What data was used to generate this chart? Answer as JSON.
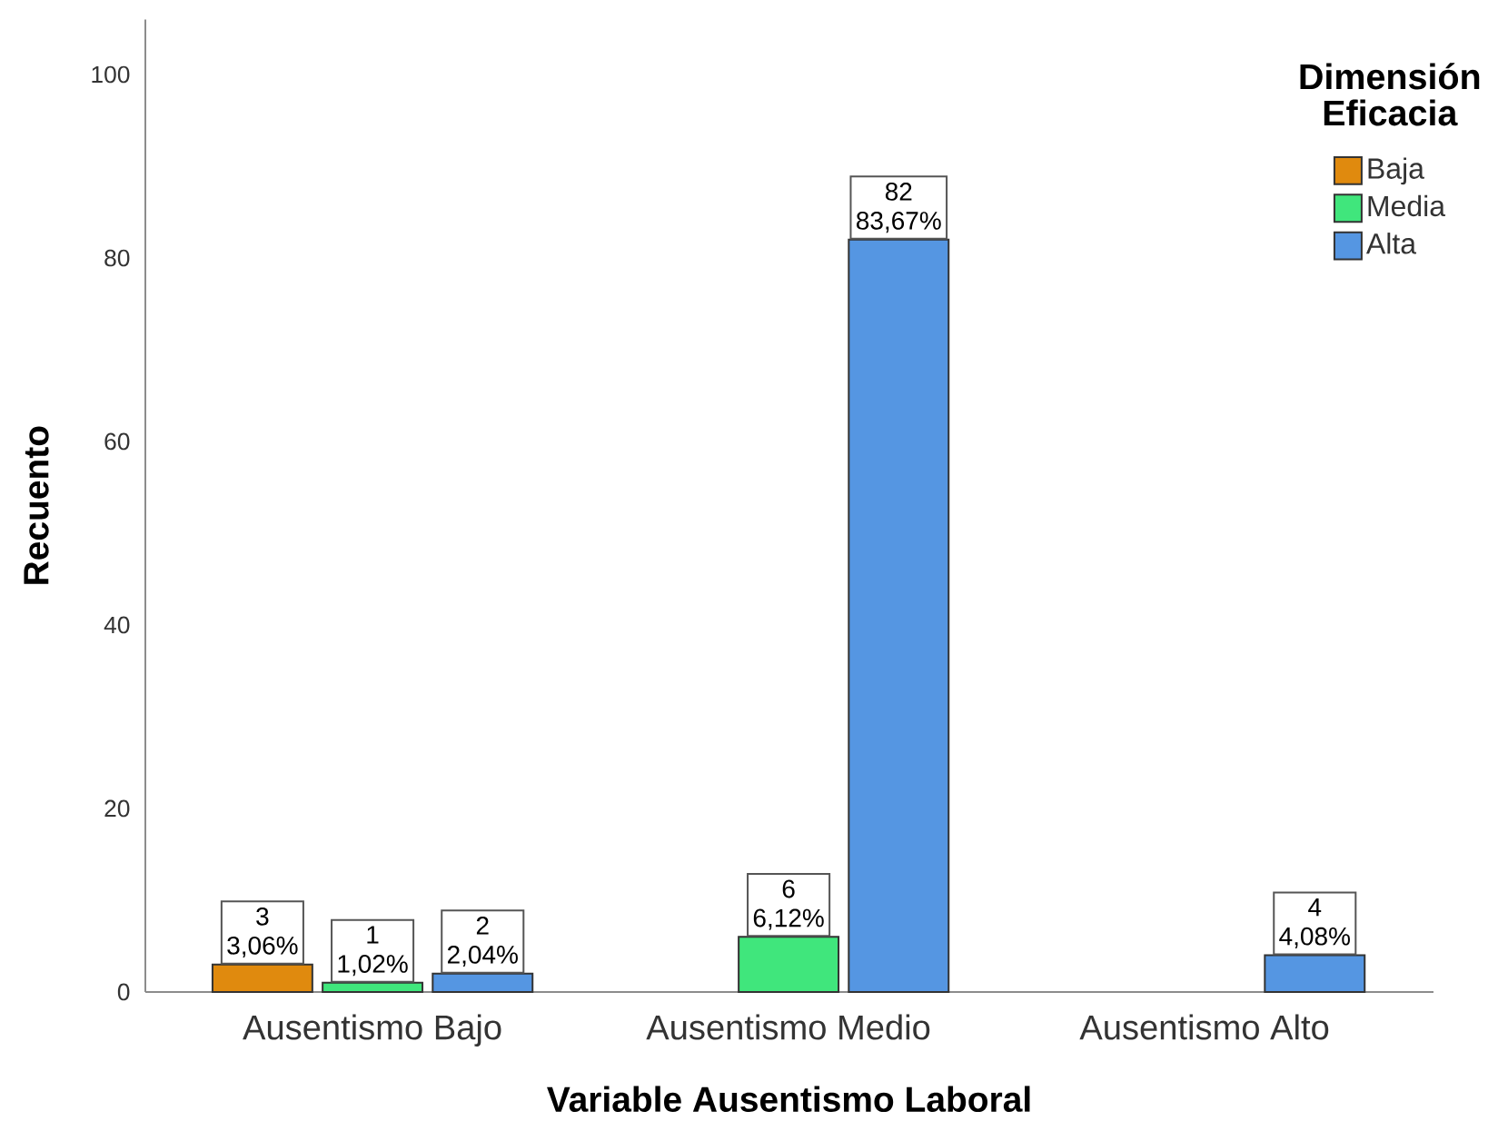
{
  "chart_data": {
    "type": "bar",
    "xlabel": "Variable Ausentismo Laboral",
    "ylabel": "Recuento",
    "legend_title": "Dimensión Eficacia",
    "categories": [
      "Ausentismo Bajo",
      "Ausentismo Medio",
      "Ausentismo Alto"
    ],
    "series": [
      {
        "name": "Baja",
        "color": "#e08a0e",
        "values": [
          3,
          null,
          null
        ],
        "value_labels": [
          "3 3,06%",
          null,
          null
        ]
      },
      {
        "name": "Media",
        "color": "#40e67c",
        "values": [
          1,
          6,
          null
        ],
        "value_labels": [
          "1 1,02%",
          "6 6,12%",
          null
        ]
      },
      {
        "name": "Alta",
        "color": "#5596e2",
        "values": [
          2,
          82,
          4
        ],
        "value_labels": [
          "2 2,04%",
          "82 83,67%",
          "4 4,08%"
        ]
      }
    ],
    "ylim": [
      0,
      106
    ],
    "yticks": [
      0,
      20,
      40,
      60,
      80,
      100
    ],
    "legend": "top right"
  }
}
